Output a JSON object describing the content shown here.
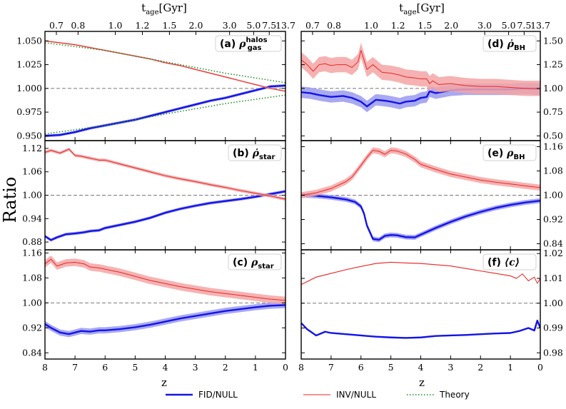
{
  "figure": {
    "ylabel": "Ratio",
    "xlabel": "z",
    "top_axis_label": "t",
    "top_axis_label_sub": "age",
    "top_axis_label_unit": "[Gyr]",
    "top_ticks": [
      {
        "z": 7.62,
        "label": "0.7"
      },
      {
        "z": 6.9,
        "label": "0.8"
      },
      {
        "z": 5.66,
        "label": "1.0"
      },
      {
        "z": 4.76,
        "label": "1.2"
      },
      {
        "z": 3.86,
        "label": "1.5"
      },
      {
        "z": 2.98,
        "label": "2.0"
      },
      {
        "z": 1.86,
        "label": "3.0"
      },
      {
        "z": 1.06,
        "label": "5.0"
      },
      {
        "z": 0.54,
        "label": "7.5"
      },
      {
        "z": 0.0,
        "label": "13.7"
      }
    ],
    "x_ticks": [
      "8",
      "7",
      "6",
      "5",
      "4",
      "3",
      "2",
      "1",
      "0"
    ]
  },
  "legend": [
    {
      "label": "FID/NULL",
      "color": "#1414e6",
      "style": "solid-thick"
    },
    {
      "label": "INV/NULL",
      "color": "#e62828",
      "style": "solid-thin"
    },
    {
      "label": "Theory",
      "color": "#1a8a1a",
      "style": "dotted"
    }
  ],
  "colors": {
    "fid": "#1414e6",
    "fid_band": "#9a9af0",
    "inv": "#e62828",
    "inv_band": "#f4a4a4",
    "theory": "#1a8a1a",
    "refline": "#777777"
  },
  "chart_data": [
    {
      "type": "line",
      "panel": "a",
      "label_text": "(a)",
      "label_symbol": "ρ",
      "label_sub": "gas",
      "label_sup": "halos",
      "xlim": [
        8,
        0
      ],
      "ylim": [
        0.945,
        1.06
      ],
      "yticks": [
        0.95,
        0.975,
        1.0,
        1.025,
        1.05
      ],
      "ytick_labels": [
        "0.950",
        "0.975",
        "1.000",
        "1.025",
        "1.050"
      ],
      "yaxis_side": "left",
      "series": [
        {
          "name": "FID/NULL",
          "x": [
            8,
            7.5,
            7,
            6.5,
            6,
            5.5,
            5,
            4.5,
            4,
            3.5,
            3,
            2.5,
            2,
            1.5,
            1,
            0.5,
            0
          ],
          "y": [
            0.95,
            0.951,
            0.954,
            0.958,
            0.961,
            0.964,
            0.967,
            0.971,
            0.975,
            0.979,
            0.983,
            0.987,
            0.99,
            0.994,
            0.998,
            1.002,
            1.003
          ],
          "band": 0.0015
        },
        {
          "name": "INV/NULL",
          "x": [
            8,
            7.5,
            7,
            6.5,
            6,
            5.5,
            5,
            4.5,
            4,
            3.5,
            3,
            2.5,
            2,
            1.5,
            1,
            0.5,
            0
          ],
          "y": [
            1.05,
            1.048,
            1.046,
            1.043,
            1.04,
            1.037,
            1.034,
            1.031,
            1.027,
            1.024,
            1.02,
            1.016,
            1.012,
            1.008,
            1.004,
            1.0,
            0.997
          ],
          "band": 0.0008
        },
        {
          "name": "Theory-upper",
          "x": [
            8,
            6,
            4,
            2,
            0
          ],
          "y": [
            1.048,
            1.04,
            1.028,
            1.016,
            1.006
          ]
        },
        {
          "name": "Theory-lower",
          "x": [
            8,
            6,
            4,
            2,
            0
          ],
          "y": [
            0.952,
            0.961,
            0.973,
            0.984,
            0.993
          ]
        }
      ]
    },
    {
      "type": "line",
      "panel": "b",
      "label_text": "(b)",
      "label_symbol": "ρ̇",
      "label_sub": "star",
      "label_sup": "",
      "xlim": [
        8,
        0
      ],
      "ylim": [
        0.86,
        1.14
      ],
      "yticks": [
        0.88,
        0.94,
        1.0,
        1.06,
        1.12
      ],
      "ytick_labels": [
        "0.88",
        "0.94",
        "1.00",
        "1.06",
        "1.12"
      ],
      "yaxis_side": "left",
      "series": [
        {
          "name": "FID/NULL",
          "x": [
            8,
            7.8,
            7.6,
            7.3,
            7,
            6.7,
            6.5,
            6.2,
            6,
            5.5,
            5,
            4.5,
            4,
            3.5,
            3,
            2.5,
            2,
            1.5,
            1,
            0.5,
            0
          ],
          "y": [
            0.895,
            0.885,
            0.892,
            0.9,
            0.902,
            0.905,
            0.908,
            0.91,
            0.916,
            0.924,
            0.932,
            0.942,
            0.955,
            0.965,
            0.973,
            0.98,
            0.985,
            0.99,
            0.996,
            1.003,
            1.01
          ],
          "band": 0.004
        },
        {
          "name": "INV/NULL",
          "x": [
            8,
            7.8,
            7.5,
            7.2,
            7,
            6.8,
            6.5,
            6.2,
            6,
            5.5,
            5,
            4.5,
            4,
            3.5,
            3,
            2.5,
            2,
            1.5,
            1,
            0.5,
            0
          ],
          "y": [
            1.11,
            1.115,
            1.108,
            1.118,
            1.102,
            1.1,
            1.095,
            1.09,
            1.09,
            1.08,
            1.07,
            1.06,
            1.05,
            1.042,
            1.035,
            1.027,
            1.02,
            1.012,
            1.005,
            0.998,
            0.99
          ],
          "band": 0.004
        }
      ]
    },
    {
      "type": "line",
      "panel": "c",
      "label_text": "(c)",
      "label_symbol": "ρ",
      "label_sub": "star",
      "label_sup": "",
      "xlim": [
        8,
        0
      ],
      "ylim": [
        0.82,
        1.17
      ],
      "yticks": [
        0.84,
        0.92,
        1.0,
        1.08,
        1.16
      ],
      "ytick_labels": [
        "0.84",
        "0.92",
        "1.00",
        "1.08",
        "1.16"
      ],
      "yaxis_side": "left",
      "series": [
        {
          "name": "FID/NULL",
          "x": [
            8,
            7.8,
            7.5,
            7.2,
            7,
            6.8,
            6.5,
            6.2,
            6,
            5.5,
            5,
            4.5,
            4,
            3.5,
            3,
            2.5,
            2,
            1.5,
            1,
            0.5,
            0
          ],
          "y": [
            0.932,
            0.92,
            0.905,
            0.9,
            0.905,
            0.91,
            0.908,
            0.912,
            0.912,
            0.916,
            0.922,
            0.93,
            0.94,
            0.95,
            0.958,
            0.966,
            0.974,
            0.98,
            0.986,
            0.991,
            0.993
          ],
          "band": 0.01
        },
        {
          "name": "INV/NULL",
          "x": [
            8,
            7.8,
            7.6,
            7.3,
            7,
            6.7,
            6.5,
            6.2,
            6,
            5.5,
            5,
            4.5,
            4,
            3.5,
            3,
            2.5,
            2,
            1.5,
            1,
            0.5,
            0
          ],
          "y": [
            1.125,
            1.14,
            1.118,
            1.128,
            1.13,
            1.125,
            1.115,
            1.112,
            1.108,
            1.098,
            1.085,
            1.072,
            1.062,
            1.052,
            1.044,
            1.036,
            1.03,
            1.024,
            1.018,
            1.012,
            1.008
          ],
          "band": 0.012
        }
      ]
    },
    {
      "type": "line",
      "panel": "d",
      "label_text": "(d)",
      "label_symbol": "ρ̇",
      "label_sub": "BH",
      "label_sup": "",
      "xlim": [
        8,
        0
      ],
      "ylim": [
        0.45,
        1.6
      ],
      "yticks": [
        0.5,
        0.75,
        1.0,
        1.25,
        1.5
      ],
      "ytick_labels": [
        "0.50",
        "0.75",
        "1.00",
        "1.25",
        "1.50"
      ],
      "yaxis_side": "right",
      "series": [
        {
          "name": "FID/NULL",
          "x": [
            8,
            7.7,
            7.4,
            7,
            6.6,
            6.3,
            6,
            5.8,
            5.5,
            5.2,
            5,
            4.7,
            4.5,
            4.2,
            4,
            3.8,
            3.7,
            3.5,
            3,
            2.5,
            2,
            1.5,
            1,
            0.5,
            0
          ],
          "y": [
            0.96,
            0.95,
            0.93,
            0.91,
            0.92,
            0.9,
            0.86,
            0.81,
            0.88,
            0.87,
            0.86,
            0.84,
            0.86,
            0.87,
            0.9,
            0.91,
            0.97,
            0.95,
            0.98,
            0.99,
            0.99,
            0.99,
            0.99,
            1.0,
            0.99
          ],
          "band": 0.06
        },
        {
          "name": "INV/NULL",
          "x": [
            8,
            7.8,
            7.6,
            7.4,
            7.2,
            7,
            6.8,
            6.5,
            6.3,
            6.1,
            6,
            5.8,
            5.6,
            5.3,
            5,
            4.7,
            4.5,
            4.2,
            4,
            3.8,
            3.7,
            3.6,
            3.4,
            3,
            2.5,
            2,
            1.5,
            1,
            0.5,
            0
          ],
          "y": [
            1.3,
            1.25,
            1.18,
            1.25,
            1.26,
            1.24,
            1.25,
            1.25,
            1.22,
            1.28,
            1.4,
            1.2,
            1.25,
            1.17,
            1.16,
            1.14,
            1.12,
            1.11,
            1.1,
            1.1,
            1.05,
            1.08,
            1.04,
            1.05,
            1.03,
            1.02,
            1.02,
            1.01,
            1.0,
            1.0
          ],
          "band": 0.08
        }
      ]
    },
    {
      "type": "line",
      "panel": "e",
      "label_text": "(e)",
      "label_symbol": "ρ",
      "label_sub": "BH",
      "label_sup": "",
      "xlim": [
        8,
        0
      ],
      "ylim": [
        0.82,
        1.18
      ],
      "yticks": [
        0.84,
        0.92,
        1.0,
        1.08,
        1.16
      ],
      "ytick_labels": [
        "0.84",
        "0.92",
        "1.00",
        "1.08",
        "1.16"
      ],
      "yaxis_side": "right",
      "series": [
        {
          "name": "FID/NULL",
          "x": [
            8,
            7.5,
            7,
            6.5,
            6.2,
            6,
            5.9,
            5.8,
            5.6,
            5.4,
            5.2,
            5,
            4.8,
            4.5,
            4.2,
            4,
            3.5,
            3,
            2.5,
            2,
            1.5,
            1,
            0.5,
            0
          ],
          "y": [
            1.0,
            0.998,
            0.993,
            0.986,
            0.978,
            0.963,
            0.94,
            0.9,
            0.856,
            0.853,
            0.866,
            0.869,
            0.868,
            0.862,
            0.861,
            0.87,
            0.892,
            0.912,
            0.93,
            0.945,
            0.958,
            0.968,
            0.976,
            0.982
          ],
          "band": 0.008
        },
        {
          "name": "INV/NULL",
          "x": [
            8,
            7.5,
            7,
            6.5,
            6.3,
            6,
            5.8,
            5.6,
            5.4,
            5.2,
            5,
            4.8,
            4.5,
            4.2,
            4,
            3.5,
            3,
            2.5,
            2,
            1.5,
            1,
            0.5,
            0
          ],
          "y": [
            1.0,
            1.008,
            1.022,
            1.045,
            1.06,
            1.098,
            1.125,
            1.148,
            1.145,
            1.135,
            1.148,
            1.146,
            1.136,
            1.118,
            1.102,
            1.085,
            1.07,
            1.06,
            1.05,
            1.043,
            1.037,
            1.031,
            1.025
          ],
          "band": 0.01
        }
      ]
    },
    {
      "type": "line",
      "panel": "f",
      "label_text": "(f)",
      "label_symbol": "⟨c⟩",
      "label_sub": "",
      "label_sup": "",
      "xlim": [
        8,
        0
      ],
      "ylim": [
        0.9775,
        1.0215
      ],
      "yticks": [
        0.98,
        0.99,
        1.0,
        1.01,
        1.02
      ],
      "ytick_labels": [
        "0.98",
        "0.99",
        "1.00",
        "1.01",
        "1.02"
      ],
      "yaxis_side": "right",
      "series": [
        {
          "name": "FID/NULL",
          "x": [
            8,
            7.8,
            7.5,
            7.2,
            7,
            6.5,
            6,
            5.5,
            5,
            4.5,
            4,
            3.5,
            3,
            2.5,
            2,
            1.5,
            1,
            0.7,
            0.4,
            0.2,
            0.1,
            0
          ],
          "y": [
            0.992,
            0.9895,
            0.987,
            0.9885,
            0.988,
            0.9875,
            0.987,
            0.9865,
            0.9862,
            0.986,
            0.9862,
            0.9868,
            0.987,
            0.9872,
            0.9875,
            0.9878,
            0.988,
            0.9888,
            0.99,
            0.989,
            0.993,
            0.99
          ],
          "band": 0.0003
        },
        {
          "name": "INV/NULL",
          "x": [
            8,
            7.5,
            7,
            6.5,
            6,
            5.5,
            5,
            4.5,
            4,
            3.5,
            3,
            2.5,
            2,
            1.5,
            1,
            0.8,
            0.6,
            0.4,
            0.2,
            0.1,
            0
          ],
          "y": [
            1.0075,
            1.0105,
            1.012,
            1.0135,
            1.0148,
            1.016,
            1.0165,
            1.0162,
            1.016,
            1.0155,
            1.015,
            1.014,
            1.013,
            1.012,
            1.011,
            1.01,
            1.0118,
            1.009,
            1.0105,
            1.008,
            1.01
          ],
          "band": 0.0002
        }
      ]
    }
  ]
}
